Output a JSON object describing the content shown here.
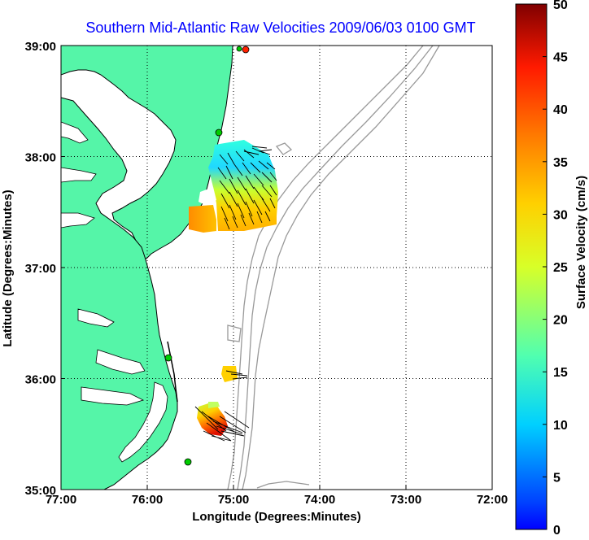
{
  "title": "Southern Mid-Atlantic Raw Velocities 2009/06/03 0100 GMT",
  "xlabel": "Longitude (Degrees:Minutes)",
  "ylabel": "Latitude (Degrees:Minutes)",
  "x_ticks": [
    "77:00",
    "76:00",
    "75:00",
    "74:00",
    "73:00",
    "72:00"
  ],
  "y_ticks": [
    "39:00",
    "38:00",
    "37:00",
    "36:00",
    "35:00"
  ],
  "colorbar": {
    "label": "Surface Velocity (cm/s)",
    "ticks": [
      "50",
      "45",
      "40",
      "35",
      "30",
      "25",
      "20",
      "15",
      "10",
      "5",
      "0"
    ],
    "range": [
      0,
      50
    ],
    "colormap": "jet"
  },
  "map_extent": {
    "lon": [
      -77,
      -72
    ],
    "lat": [
      35,
      39
    ]
  },
  "colors": {
    "land": "#55f5a8",
    "coast": "#000000",
    "bathymetry": "#999999",
    "title": "#0000ff",
    "site_marker": "#00cc00",
    "site_marker_alt": "#ff2200"
  },
  "current_fields": [
    {
      "region": "north",
      "lon": [
        -75.55,
        -74.6
      ],
      "lat": [
        37.3,
        38.05
      ],
      "speed_range_cm_s": [
        10,
        35
      ]
    },
    {
      "region": "south-1",
      "lon": [
        -75.1,
        -74.9
      ],
      "lat": [
        35.95,
        36.1
      ],
      "speed_range_cm_s": [
        25,
        30
      ]
    },
    {
      "region": "south-2",
      "lon": [
        -75.4,
        -74.9
      ],
      "lat": [
        35.45,
        35.75
      ],
      "speed_range_cm_s": [
        25,
        45
      ]
    }
  ],
  "site_markers": [
    {
      "lon": -74.8,
      "lat": 38.98,
      "color": "red"
    },
    {
      "lon": -74.87,
      "lat": 38.98,
      "color": "green"
    },
    {
      "lon": -75.07,
      "lat": 38.2,
      "color": "green"
    },
    {
      "lon": -75.7,
      "lat": 36.18,
      "color": "green"
    },
    {
      "lon": -75.52,
      "lat": 35.25,
      "color": "green"
    }
  ]
}
